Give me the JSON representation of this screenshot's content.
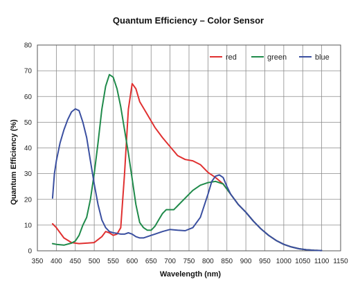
{
  "chart_data": {
    "type": "line",
    "title": "Quantum Efficiency – Color Sensor",
    "xlabel": "Wavelength (nm)",
    "ylabel": "Quantum Efficiency (%)",
    "xlim": [
      350,
      1150
    ],
    "ylim": [
      0,
      80
    ],
    "xticks": [
      350,
      400,
      450,
      500,
      550,
      600,
      650,
      700,
      750,
      800,
      850,
      900,
      950,
      1000,
      1050,
      1100,
      1150
    ],
    "yticks": [
      0,
      10,
      20,
      30,
      40,
      50,
      60,
      70,
      80
    ],
    "grid": true,
    "legend_position": "top-right",
    "series": [
      {
        "name": "red",
        "color": "#e03030",
        "points": [
          [
            390,
            10.5
          ],
          [
            400,
            9
          ],
          [
            420,
            5
          ],
          [
            440,
            3.2
          ],
          [
            460,
            2.8
          ],
          [
            480,
            3
          ],
          [
            500,
            3.2
          ],
          [
            520,
            5.5
          ],
          [
            530,
            7.5
          ],
          [
            540,
            7
          ],
          [
            550,
            6
          ],
          [
            560,
            6.5
          ],
          [
            570,
            9
          ],
          [
            580,
            30
          ],
          [
            590,
            55
          ],
          [
            600,
            65
          ],
          [
            610,
            63
          ],
          [
            620,
            58
          ],
          [
            640,
            53
          ],
          [
            660,
            48
          ],
          [
            680,
            44
          ],
          [
            700,
            40.5
          ],
          [
            720,
            37
          ],
          [
            740,
            35.5
          ],
          [
            760,
            35
          ],
          [
            780,
            33.5
          ],
          [
            800,
            30.5
          ],
          [
            820,
            28.5
          ],
          [
            840,
            26
          ],
          [
            860,
            22
          ],
          [
            880,
            18
          ],
          [
            900,
            15
          ],
          [
            920,
            11.5
          ],
          [
            940,
            8.5
          ],
          [
            960,
            6
          ],
          [
            980,
            4
          ],
          [
            1000,
            2.5
          ],
          [
            1020,
            1.5
          ],
          [
            1040,
            0.8
          ],
          [
            1060,
            0.4
          ],
          [
            1080,
            0.2
          ],
          [
            1100,
            0.1
          ]
        ]
      },
      {
        "name": "green",
        "color": "#1f8a4a",
        "points": [
          [
            390,
            2.8
          ],
          [
            400,
            2.5
          ],
          [
            420,
            2.2
          ],
          [
            440,
            3
          ],
          [
            450,
            3.8
          ],
          [
            460,
            6
          ],
          [
            470,
            10
          ],
          [
            480,
            13
          ],
          [
            490,
            20
          ],
          [
            500,
            30
          ],
          [
            510,
            42
          ],
          [
            520,
            55
          ],
          [
            530,
            64
          ],
          [
            540,
            68.5
          ],
          [
            550,
            67.5
          ],
          [
            560,
            63
          ],
          [
            570,
            56
          ],
          [
            580,
            47
          ],
          [
            590,
            38
          ],
          [
            600,
            28
          ],
          [
            610,
            18
          ],
          [
            620,
            11
          ],
          [
            630,
            9
          ],
          [
            640,
            8
          ],
          [
            650,
            8
          ],
          [
            660,
            9.5
          ],
          [
            670,
            12
          ],
          [
            680,
            14.5
          ],
          [
            690,
            16
          ],
          [
            700,
            16
          ],
          [
            710,
            16
          ],
          [
            720,
            17.5
          ],
          [
            740,
            20.5
          ],
          [
            760,
            23.5
          ],
          [
            780,
            25.5
          ],
          [
            800,
            26.5
          ],
          [
            820,
            27
          ],
          [
            840,
            26
          ],
          [
            860,
            22
          ],
          [
            880,
            18
          ],
          [
            900,
            15
          ],
          [
            920,
            11.5
          ],
          [
            940,
            8.5
          ],
          [
            960,
            6
          ],
          [
            980,
            4
          ],
          [
            1000,
            2.5
          ],
          [
            1020,
            1.5
          ],
          [
            1040,
            0.8
          ],
          [
            1060,
            0.4
          ],
          [
            1080,
            0.2
          ],
          [
            1100,
            0.1
          ]
        ]
      },
      {
        "name": "blue",
        "color": "#3a4fa0",
        "points": [
          [
            390,
            20.5
          ],
          [
            395,
            30
          ],
          [
            400,
            35
          ],
          [
            410,
            42
          ],
          [
            420,
            47
          ],
          [
            430,
            51
          ],
          [
            440,
            54
          ],
          [
            450,
            55.2
          ],
          [
            460,
            54.5
          ],
          [
            470,
            50
          ],
          [
            480,
            44
          ],
          [
            490,
            35
          ],
          [
            500,
            26
          ],
          [
            510,
            18
          ],
          [
            520,
            12
          ],
          [
            530,
            9
          ],
          [
            540,
            7.5
          ],
          [
            550,
            7
          ],
          [
            560,
            6.8
          ],
          [
            570,
            6.5
          ],
          [
            580,
            6.5
          ],
          [
            590,
            7
          ],
          [
            600,
            6.5
          ],
          [
            610,
            5.5
          ],
          [
            620,
            5
          ],
          [
            630,
            5
          ],
          [
            640,
            5.5
          ],
          [
            650,
            6
          ],
          [
            660,
            6.5
          ],
          [
            680,
            7.5
          ],
          [
            700,
            8.3
          ],
          [
            720,
            8
          ],
          [
            740,
            7.8
          ],
          [
            760,
            9
          ],
          [
            780,
            13
          ],
          [
            800,
            22
          ],
          [
            810,
            27
          ],
          [
            820,
            29
          ],
          [
            830,
            29.5
          ],
          [
            840,
            28.5
          ],
          [
            850,
            25
          ],
          [
            860,
            22
          ],
          [
            880,
            18
          ],
          [
            900,
            15
          ],
          [
            920,
            11.5
          ],
          [
            940,
            8.5
          ],
          [
            960,
            6
          ],
          [
            980,
            4
          ],
          [
            1000,
            2.5
          ],
          [
            1020,
            1.5
          ],
          [
            1040,
            0.8
          ],
          [
            1060,
            0.4
          ],
          [
            1080,
            0.2
          ],
          [
            1100,
            0.1
          ]
        ]
      }
    ]
  }
}
